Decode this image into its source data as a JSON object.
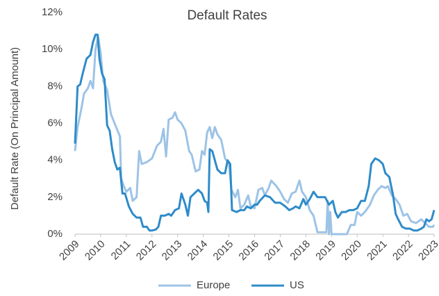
{
  "chart_data": {
    "type": "line",
    "title": "Default Rates",
    "y_label": "Default Rate (On Principal Amount)",
    "xlim": [
      2009,
      2023
    ],
    "xticks": [
      2009,
      2010,
      2011,
      2012,
      2013,
      2014,
      2015,
      2016,
      2017,
      2018,
      2019,
      2020,
      2021,
      2022,
      2023
    ],
    "ylim": [
      0,
      12
    ],
    "yticks": [
      {
        "value": 0,
        "label": "0%"
      },
      {
        "value": 2,
        "label": "2%"
      },
      {
        "value": 4,
        "label": "4%"
      },
      {
        "value": 6,
        "label": "6%"
      },
      {
        "value": 8,
        "label": "8%"
      },
      {
        "value": 10,
        "label": "10%"
      },
      {
        "value": 12,
        "label": "12%"
      }
    ],
    "grid": false,
    "legend": "bottom",
    "series": [
      {
        "name": "Europe",
        "color": "#9dc3e6",
        "x": [
          2009.0,
          2009.1,
          2009.25,
          2009.35,
          2009.5,
          2009.6,
          2009.7,
          2009.8,
          2009.9,
          2010.0,
          2010.1,
          2010.25,
          2010.4,
          2010.6,
          2010.75,
          2010.8,
          2010.9,
          2011.0,
          2011.15,
          2011.25,
          2011.4,
          2011.5,
          2011.6,
          2011.8,
          2012.0,
          2012.2,
          2012.35,
          2012.45,
          2012.55,
          2012.65,
          2012.8,
          2012.9,
          2013.0,
          2013.15,
          2013.3,
          2013.45,
          2013.55,
          2013.7,
          2013.85,
          2013.95,
          2014.05,
          2014.15,
          2014.25,
          2014.35,
          2014.45,
          2014.55,
          2014.7,
          2014.85,
          2015.0,
          2015.1,
          2015.25,
          2015.35,
          2015.45,
          2015.6,
          2015.75,
          2015.85,
          2016.0,
          2016.15,
          2016.3,
          2016.4,
          2016.55,
          2016.65,
          2016.85,
          2017.0,
          2017.15,
          2017.3,
          2017.45,
          2017.6,
          2017.75,
          2017.85,
          2018.0,
          2018.15,
          2018.3,
          2018.45,
          2018.6,
          2018.8,
          2018.85,
          2018.9,
          2018.95,
          2019.0,
          2019.3,
          2019.6,
          2019.75,
          2019.9,
          2020.0,
          2020.15,
          2020.3,
          2020.5,
          2020.65,
          2020.8,
          2020.95,
          2021.1,
          2021.2,
          2021.35,
          2021.5,
          2021.65,
          2021.8,
          2021.95,
          2022.1,
          2022.3,
          2022.5,
          2022.65,
          2022.8,
          2022.95,
          2023.0
        ],
        "values": [
          4.5,
          5.8,
          6.8,
          7.6,
          7.9,
          8.3,
          7.9,
          10.0,
          10.7,
          9.8,
          8.3,
          7.8,
          6.5,
          5.8,
          5.3,
          3.0,
          2.6,
          2.3,
          2.5,
          1.8,
          2.0,
          4.5,
          3.8,
          3.9,
          4.1,
          4.8,
          5.0,
          5.7,
          4.2,
          6.2,
          6.3,
          6.6,
          6.2,
          6.0,
          5.6,
          4.5,
          4.3,
          3.4,
          3.5,
          4.5,
          4.3,
          5.5,
          5.8,
          5.2,
          5.8,
          5.4,
          5.1,
          4.1,
          3.8,
          2.4,
          2.0,
          2.4,
          1.4,
          1.6,
          2.1,
          1.5,
          1.4,
          2.4,
          2.5,
          2.1,
          2.5,
          2.9,
          2.6,
          2.3,
          1.9,
          1.7,
          2.2,
          2.3,
          2.9,
          2.3,
          2.0,
          1.3,
          1.0,
          0.1,
          0.1,
          0.1,
          1.8,
          0.0,
          1.2,
          0.0,
          0.0,
          0.0,
          0.5,
          0.5,
          1.2,
          1.0,
          1.2,
          1.6,
          2.1,
          2.4,
          2.6,
          2.5,
          2.6,
          2.1,
          1.9,
          1.6,
          1.0,
          1.1,
          0.7,
          0.6,
          0.8,
          0.6,
          0.4,
          0.4,
          0.5
        ]
      },
      {
        "name": "US",
        "color": "#2e8bc9",
        "x": [
          2009.0,
          2009.1,
          2009.2,
          2009.3,
          2009.45,
          2009.6,
          2009.7,
          2009.8,
          2009.88,
          2009.95,
          2010.05,
          2010.15,
          2010.25,
          2010.35,
          2010.45,
          2010.55,
          2010.65,
          2010.75,
          2010.85,
          2010.95,
          2011.1,
          2011.25,
          2011.4,
          2011.55,
          2011.65,
          2011.8,
          2011.9,
          2012.0,
          2012.15,
          2012.25,
          2012.35,
          2012.5,
          2012.65,
          2012.75,
          2012.9,
          2013.05,
          2013.15,
          2013.3,
          2013.4,
          2013.5,
          2013.65,
          2013.8,
          2013.95,
          2014.05,
          2014.15,
          2014.2,
          2014.25,
          2014.35,
          2014.45,
          2014.55,
          2014.7,
          2014.85,
          2014.95,
          2015.05,
          2015.12,
          2015.3,
          2015.45,
          2015.6,
          2015.7,
          2015.85,
          2016.0,
          2016.1,
          2016.2,
          2016.4,
          2016.6,
          2016.8,
          2017.0,
          2017.2,
          2017.35,
          2017.5,
          2017.6,
          2017.75,
          2017.9,
          2018.0,
          2018.15,
          2018.3,
          2018.45,
          2018.6,
          2018.75,
          2018.9,
          2019.05,
          2019.15,
          2019.25,
          2019.4,
          2019.55,
          2019.7,
          2019.85,
          2020.0,
          2020.15,
          2020.3,
          2020.45,
          2020.55,
          2020.7,
          2020.85,
          2021.0,
          2021.1,
          2021.25,
          2021.4,
          2021.5,
          2021.6,
          2021.75,
          2021.9,
          2022.05,
          2022.2,
          2022.35,
          2022.5,
          2022.6,
          2022.7,
          2022.8,
          2022.9,
          2023.0
        ],
        "values": [
          4.9,
          8.0,
          8.1,
          8.7,
          9.5,
          9.7,
          10.4,
          10.8,
          10.8,
          9.5,
          8.7,
          8.4,
          5.9,
          5.6,
          4.6,
          3.9,
          3.5,
          3.6,
          2.2,
          2.2,
          1.5,
          1.1,
          0.9,
          0.9,
          0.4,
          0.4,
          0.2,
          0.2,
          0.25,
          0.4,
          1.0,
          1.0,
          1.1,
          1.0,
          1.3,
          1.4,
          2.2,
          1.6,
          1.0,
          2.0,
          2.2,
          2.4,
          2.2,
          1.8,
          1.7,
          1.2,
          4.6,
          4.5,
          4.0,
          3.5,
          3.3,
          3.3,
          4.0,
          3.8,
          1.3,
          1.2,
          1.3,
          1.3,
          1.5,
          1.4,
          1.6,
          1.6,
          1.8,
          2.1,
          2.0,
          1.7,
          1.7,
          1.5,
          1.3,
          1.4,
          1.5,
          1.4,
          1.9,
          1.6,
          1.9,
          2.3,
          2.0,
          2.0,
          2.0,
          1.6,
          1.8,
          1.2,
          0.9,
          1.2,
          1.2,
          1.3,
          1.3,
          1.4,
          1.8,
          1.8,
          2.6,
          3.8,
          4.1,
          4.0,
          3.8,
          3.3,
          3.1,
          2.1,
          1.1,
          0.8,
          0.4,
          0.3,
          0.3,
          0.2,
          0.2,
          0.3,
          0.4,
          0.8,
          0.7,
          0.8,
          1.3
        ]
      }
    ]
  }
}
